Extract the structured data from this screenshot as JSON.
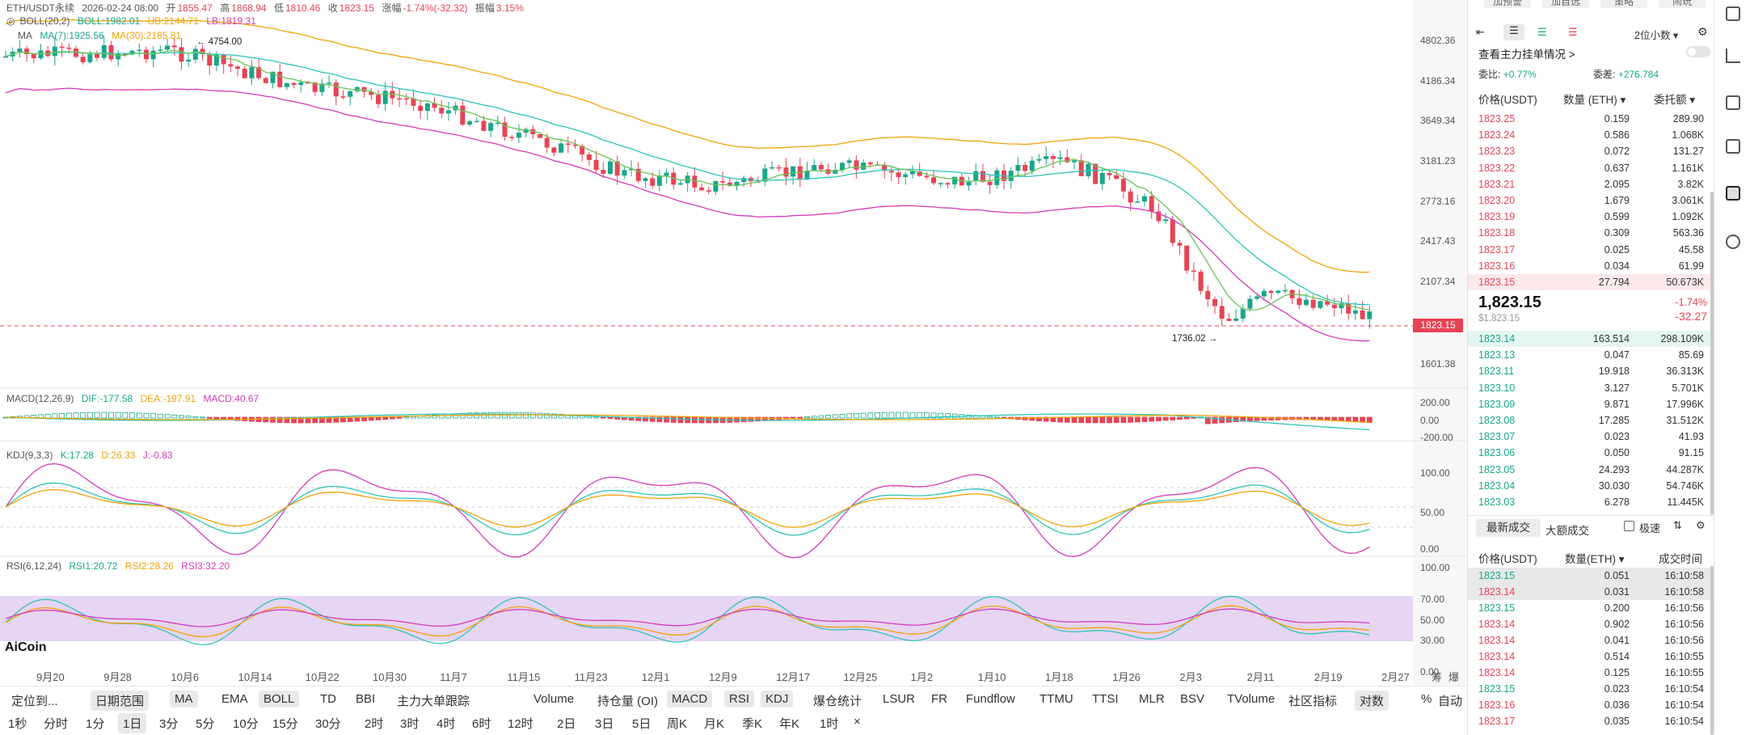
{
  "header": {
    "symbol": "ETH/USDT永续",
    "date": "2026-02-24 08:00",
    "open_label": "开",
    "open": "1855.47",
    "high_label": "高",
    "high": "1868.94",
    "low_label": "低",
    "low": "1810.46",
    "close_label": "收",
    "close": "1823.15",
    "change_label": "涨幅",
    "change": "-1.74%(-32.32)",
    "amp_label": "振幅",
    "amp": "3.15%"
  },
  "indicators": {
    "boll": {
      "name": "BOLL(20,2)",
      "boll": "BOLL:1982.01",
      "ub": "UB:2144.71",
      "lb": "LB:1819.31"
    },
    "ma": {
      "name": "MA",
      "ma7": "MA(7):1925.56",
      "ma30": "MA(30):2185.81"
    },
    "macd": {
      "name": "MACD(12,26,9)",
      "dif": "DIF:-177.58",
      "dea": "DEA:-197.91",
      "macd": "MACD:40.67"
    },
    "kdj": {
      "name": "KDJ(9,3,3)",
      "k": "K:17.28",
      "d": "D:26.33",
      "j": "J:-0.83"
    },
    "rsi": {
      "name": "RSI(6,12,24)",
      "rsi1": "RSI1:20.72",
      "rsi2": "RSI2:28.26",
      "rsi3": "RSI3:32.20"
    }
  },
  "annotations": {
    "high": "← 4754.00",
    "low": "1736.02 →",
    "current": "1823.15"
  },
  "price_axis": [
    "4802.36",
    "4186.34",
    "3649.34",
    "3181.23",
    "2773.16",
    "2417.43",
    "2107.34",
    "1601.38"
  ],
  "macd_axis": [
    "200.00",
    "0.00",
    "-200.00"
  ],
  "kdj_axis": [
    "100.00",
    "50.00",
    "0.00"
  ],
  "rsi_axis": [
    "100.00",
    "70.00",
    "50.00",
    "30.00",
    "0.00"
  ],
  "date_axis": [
    "9月20",
    "9月28",
    "10月6",
    "10月14",
    "10月22",
    "10月30",
    "11月7",
    "11月15",
    "11月23",
    "12月1",
    "12月9",
    "12月17",
    "12月25",
    "1月2",
    "1月10",
    "1月18",
    "1月26",
    "2月3",
    "2月11",
    "2月19",
    "2月27"
  ],
  "axis_right_labels": [
    "筹",
    "爆"
  ],
  "logo": "AiCoin",
  "toolbar1": [
    "定位到...",
    "日期范围",
    "MA",
    "EMA",
    "BOLL",
    "TD",
    "BBI",
    "主力大单跟踪",
    "Volume",
    "持仓量 (OI)",
    "MACD",
    "RSI",
    "KDJ",
    "爆仓统计",
    "LSUR",
    "FR",
    "Fundflow",
    "TTMU",
    "TTSI",
    "MLR",
    "BSV",
    "TVolume",
    "社区指标",
    "对数",
    "%",
    "自动"
  ],
  "toolbar2": [
    "1秒",
    "分时",
    "1分",
    "1日",
    "3分",
    "5分",
    "10分",
    "15分",
    "30分",
    "2时",
    "3时",
    "4时",
    "6时",
    "12时",
    "2日",
    "3日",
    "5日",
    "周K",
    "月K",
    "季K",
    "年K",
    "1时",
    "×"
  ],
  "order_book": {
    "top_buttons": [
      "加预警",
      "加自选",
      "策略",
      "闹玩"
    ],
    "precision": "2位小数 ▾",
    "main_link": "查看主力挂单情况 >",
    "ratio_label": "委比:",
    "ratio": "+0.77%",
    "diff_label": "委差:",
    "diff": "+276.784",
    "col_price": "价格(USDT)",
    "col_qty": "数量 (ETH) ▾",
    "col_amt": "委托额 ▾",
    "asks": [
      [
        "1823.25",
        "0.159",
        "289.90"
      ],
      [
        "1823.24",
        "0.586",
        "1.068K"
      ],
      [
        "1823.23",
        "0.072",
        "131.27"
      ],
      [
        "1823.22",
        "0.637",
        "1.161K"
      ],
      [
        "1823.21",
        "2.095",
        "3.82K"
      ],
      [
        "1823.20",
        "1.679",
        "3.061K"
      ],
      [
        "1823.19",
        "0.599",
        "1.092K"
      ],
      [
        "1823.18",
        "0.309",
        "563.36"
      ],
      [
        "1823.17",
        "0.025",
        "45.58"
      ],
      [
        "1823.16",
        "0.034",
        "61.99"
      ],
      [
        "1823.15",
        "27.794",
        "50.673K"
      ]
    ],
    "last_price": "1,823.15",
    "last_usd": "$1,823.15",
    "last_pct": "-1.74%",
    "last_chg": "-32.27",
    "bids": [
      [
        "1823.14",
        "163.514",
        "298.109K"
      ],
      [
        "1823.13",
        "0.047",
        "85.69"
      ],
      [
        "1823.11",
        "19.918",
        "36.313K"
      ],
      [
        "1823.10",
        "3.127",
        "5.701K"
      ],
      [
        "1823.09",
        "9.871",
        "17.996K"
      ],
      [
        "1823.08",
        "17.285",
        "31.512K"
      ],
      [
        "1823.07",
        "0.023",
        "41.93"
      ],
      [
        "1823.06",
        "0.050",
        "91.15"
      ],
      [
        "1823.05",
        "24.293",
        "44.287K"
      ],
      [
        "1823.04",
        "30.030",
        "54.746K"
      ],
      [
        "1823.03",
        "6.278",
        "11.445K"
      ]
    ],
    "trades_tab1": "最新成交",
    "trades_tab2": "大额成交",
    "fast_label": "极速",
    "col_tprice": "价格(USDT)",
    "col_tqty": "数量(ETH) ▾",
    "col_time": "成交时间",
    "trades": [
      [
        "1823.15",
        "0.051",
        "16:10:58",
        "g"
      ],
      [
        "1823.14",
        "0.031",
        "16:10:58",
        "r"
      ],
      [
        "1823.15",
        "0.200",
        "16:10:56",
        "g"
      ],
      [
        "1823.14",
        "0.902",
        "16:10:56",
        "r"
      ],
      [
        "1823.14",
        "0.041",
        "16:10:56",
        "r"
      ],
      [
        "1823.14",
        "0.514",
        "16:10:55",
        "r"
      ],
      [
        "1823.14",
        "0.125",
        "16:10:55",
        "r"
      ],
      [
        "1823.15",
        "0.023",
        "16:10:54",
        "g"
      ],
      [
        "1823.16",
        "0.036",
        "16:10:54",
        "r"
      ],
      [
        "1823.17",
        "0.035",
        "16:10:54",
        "r"
      ]
    ]
  },
  "colors": {
    "up": "#1aa68a",
    "down": "#e64456",
    "boll_mid": "#2ec4b6",
    "boll_up": "#f0a30a",
    "boll_low": "#d43cb8",
    "ma7": "#2ec4b6",
    "ma30": "#f0a30a"
  }
}
